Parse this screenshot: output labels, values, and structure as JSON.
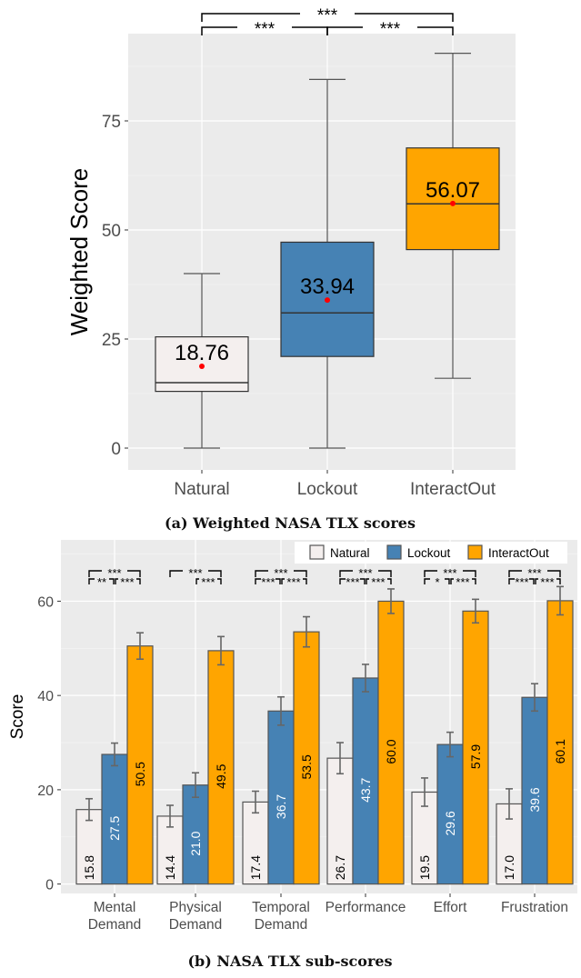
{
  "chart_data": [
    {
      "type": "box",
      "ylabel": "Weighted Score",
      "ylim": [
        -5,
        95
      ],
      "yticks": [
        0,
        25,
        50,
        75
      ],
      "caption": "(a) Weighted NASA TLX scores",
      "grid": true,
      "categories": [
        "Natural",
        "Lockout",
        "InteractOut"
      ],
      "boxes": [
        {
          "category": "Natural",
          "min": 0,
          "q1": 13,
          "median": 15,
          "q3": 25.5,
          "max": 40,
          "mean": 18.76,
          "mean_label": "18.76",
          "color": "#f4efee"
        },
        {
          "category": "Lockout",
          "min": 0,
          "q1": 21,
          "median": 31,
          "q3": 47.2,
          "max": 84.5,
          "mean": 33.94,
          "mean_label": "33.94",
          "color": "#4682b4"
        },
        {
          "category": "InteractOut",
          "min": 16,
          "q1": 45.5,
          "median": 56,
          "q3": 68.8,
          "max": 90.5,
          "mean": 56.07,
          "mean_label": "56.07",
          "color": "#ffa500"
        }
      ],
      "significance": [
        {
          "from": 0,
          "to": 2,
          "label": "***"
        },
        {
          "from": 0,
          "to": 1,
          "label": "***"
        },
        {
          "from": 1,
          "to": 2,
          "label": "***"
        }
      ],
      "mean_color": "#ff0000"
    },
    {
      "type": "bar",
      "ylabel": "Score",
      "ylim": [
        -2,
        73
      ],
      "yticks": [
        0,
        20,
        40,
        60
      ],
      "caption": "(b) NASA TLX sub-scores",
      "grid": true,
      "legend_position": "top-right",
      "categories": [
        "Mental\nDemand",
        "Physical\nDemand",
        "Temporal\nDemand",
        "Performance",
        "Effort",
        "Frustration"
      ],
      "series": [
        {
          "name": "Natural",
          "color": "#f4efee",
          "label_color": "#000000",
          "values": [
            15.8,
            14.4,
            17.4,
            26.7,
            19.5,
            17.0
          ],
          "labels": [
            "15.8",
            "14.4",
            "17.4",
            "26.7",
            "19.5",
            "17.0"
          ],
          "errors": [
            2.3,
            2.3,
            2.3,
            3.3,
            3.0,
            3.2
          ]
        },
        {
          "name": "Lockout",
          "color": "#4682b4",
          "label_color": "#ffffff",
          "values": [
            27.5,
            21.0,
            36.7,
            43.7,
            29.6,
            39.6
          ],
          "labels": [
            "27.5",
            "21.0",
            "36.7",
            "43.7",
            "29.6",
            "39.6"
          ],
          "errors": [
            2.4,
            2.6,
            3.0,
            2.9,
            2.6,
            2.9
          ]
        },
        {
          "name": "InteractOut",
          "color": "#ffa500",
          "label_color": "#000000",
          "values": [
            50.5,
            49.5,
            53.5,
            60.0,
            57.9,
            60.1
          ],
          "labels": [
            "50.5",
            "49.5",
            "53.5",
            "60.0",
            "57.9",
            "60.1"
          ],
          "errors": [
            2.8,
            3.0,
            3.2,
            2.6,
            2.5,
            3.0
          ]
        }
      ],
      "significance": [
        {
          "top": "***",
          "left": "**",
          "right": "***"
        },
        {
          "top": "***",
          "left": "",
          "right": "***"
        },
        {
          "top": "***",
          "left": "***",
          "right": "***"
        },
        {
          "top": "***",
          "left": "***",
          "right": "***"
        },
        {
          "top": "***",
          "left": "*",
          "right": "***"
        },
        {
          "top": "***",
          "left": "***",
          "right": "***"
        }
      ]
    }
  ]
}
